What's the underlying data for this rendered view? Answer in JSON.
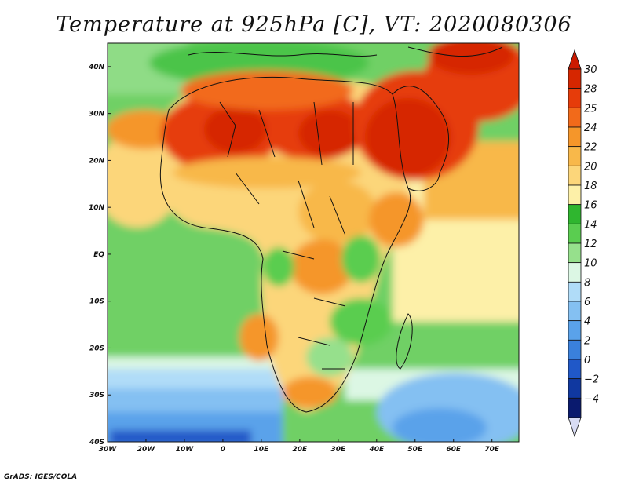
{
  "title": "Temperature at 925hPa [C], VT: 2020080306",
  "credit": "GrADS: IGES/COLA",
  "map": {
    "lon_range": [
      -30,
      77
    ],
    "lat_range": [
      -40,
      45
    ],
    "lon_ticks": [
      {
        "value": -30,
        "label": "30W"
      },
      {
        "value": -20,
        "label": "20W"
      },
      {
        "value": -10,
        "label": "10W"
      },
      {
        "value": 0,
        "label": "0"
      },
      {
        "value": 10,
        "label": "10E"
      },
      {
        "value": 20,
        "label": "20E"
      },
      {
        "value": 30,
        "label": "30E"
      },
      {
        "value": 40,
        "label": "40E"
      },
      {
        "value": 50,
        "label": "50E"
      },
      {
        "value": 60,
        "label": "60E"
      },
      {
        "value": 70,
        "label": "70E"
      }
    ],
    "lat_ticks": [
      {
        "value": 40,
        "label": "40N"
      },
      {
        "value": 30,
        "label": "30N"
      },
      {
        "value": 20,
        "label": "20N"
      },
      {
        "value": 10,
        "label": "10N"
      },
      {
        "value": 0,
        "label": "EQ"
      },
      {
        "value": -10,
        "label": "10S"
      },
      {
        "value": -20,
        "label": "20S"
      },
      {
        "value": -30,
        "label": "30S"
      },
      {
        "value": -40,
        "label": "40S"
      }
    ]
  },
  "colorbar": {
    "levels": [
      {
        "label": "30",
        "color": "#d62600"
      },
      {
        "label": "28",
        "color": "#e63c0a"
      },
      {
        "label": "25",
        "color": "#f26a1a"
      },
      {
        "label": "24",
        "color": "#f5962a"
      },
      {
        "label": "22",
        "color": "#f8b84a"
      },
      {
        "label": "20",
        "color": "#fcd67a"
      },
      {
        "label": "18",
        "color": "#fdf0a8"
      },
      {
        "label": "16",
        "color": "#2fb62f"
      },
      {
        "label": "14",
        "color": "#5acd50"
      },
      {
        "label": "12",
        "color": "#96e08c"
      },
      {
        "label": "10",
        "color": "#dcf7e4"
      },
      {
        "label": "8",
        "color": "#b0dcf8"
      },
      {
        "label": "6",
        "color": "#84c0f2"
      },
      {
        "label": "4",
        "color": "#5aa2ea"
      },
      {
        "label": "2",
        "color": "#3a80dc"
      },
      {
        "label": "0",
        "color": "#2058c8"
      },
      {
        "label": "−2",
        "color": "#1038a0"
      },
      {
        "label": "−4",
        "color": "#0a1a6e"
      }
    ],
    "top_color": "#cc1a00",
    "bottom_color": "#d8dcf4"
  }
}
